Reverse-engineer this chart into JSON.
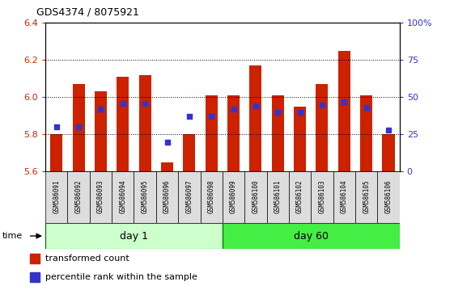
{
  "title": "GDS4374 / 8075921",
  "samples": [
    "GSM586091",
    "GSM586092",
    "GSM586093",
    "GSM586094",
    "GSM586095",
    "GSM586096",
    "GSM586097",
    "GSM586098",
    "GSM586099",
    "GSM586100",
    "GSM586101",
    "GSM586102",
    "GSM586103",
    "GSM586104",
    "GSM586105",
    "GSM586106"
  ],
  "bar_values": [
    5.8,
    6.07,
    6.03,
    6.11,
    6.12,
    5.65,
    5.8,
    6.01,
    6.01,
    6.17,
    6.01,
    5.95,
    6.07,
    6.25,
    6.01,
    5.8
  ],
  "percentile_values": [
    30,
    30,
    42,
    46,
    46,
    20,
    37,
    37,
    42,
    44,
    40,
    40,
    45,
    47,
    43,
    28
  ],
  "y_min": 5.6,
  "y_max": 6.4,
  "bar_color": "#CC2200",
  "percentile_color": "#3333CC",
  "day1_color": "#CCFFCC",
  "day60_color": "#44EE44",
  "group_label_day1": "day 1",
  "group_label_day60": "day 60",
  "legend_bar": "transformed count",
  "legend_pct": "percentile rank within the sample",
  "left_ylabel_color": "#CC2200",
  "right_ylabel_color": "#3333CC",
  "yticks_left": [
    5.6,
    5.8,
    6.0,
    6.2,
    6.4
  ],
  "yticks_right_vals": [
    0,
    25,
    50,
    75,
    100
  ],
  "yticks_right_labels": [
    "0",
    "25",
    "50",
    "75",
    "100%"
  ],
  "day1_count": 8,
  "day60_count": 8
}
